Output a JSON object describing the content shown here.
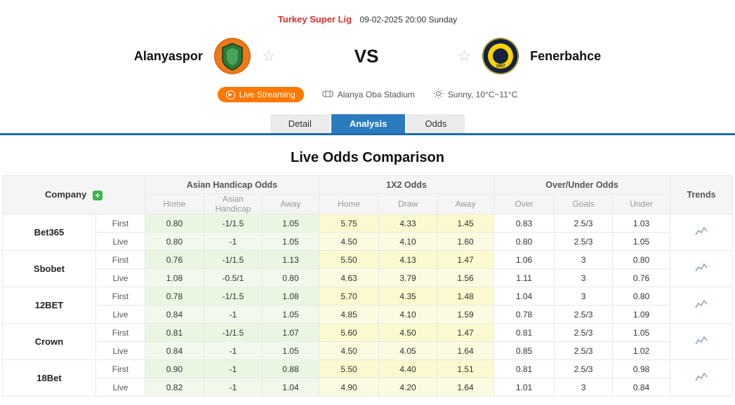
{
  "match_header": {
    "league": "Turkey Super Lig",
    "datetime": "09-02-2025 20:00 Sunday",
    "home_team": "Alanyaspor",
    "away_team": "Fenerbahce",
    "away_logo_year": "1907",
    "vs_label": "VS",
    "live_streaming_label": "Live Streaming",
    "stadium": "Alanya Oba Stadium",
    "weather": "Sunny, 10°C~11°C"
  },
  "icons": {
    "play": "▶",
    "star": "☆",
    "plus": "+"
  },
  "tabs": [
    {
      "label": "Detail",
      "active": false
    },
    {
      "label": "Analysis",
      "active": true
    },
    {
      "label": "Odds",
      "active": false
    }
  ],
  "section_title": "Live Odds Comparison",
  "odds_table": {
    "company_header": "Company",
    "trends_header": "Trends",
    "groups": [
      "Asian Handicap Odds",
      "1X2 Odds",
      "Over/Under Odds"
    ],
    "sub_headers": [
      "Home",
      "Asian Handicap",
      "Away",
      "Home",
      "Draw",
      "Away",
      "Over",
      "Goals",
      "Under"
    ],
    "row_labels": {
      "first": "First",
      "live": "Live"
    },
    "companies": [
      {
        "name": "Bet365",
        "first": [
          "0.80",
          "-1/1.5",
          "1.05",
          "5.75",
          "4.33",
          "1.45",
          "0.83",
          "2.5/3",
          "1.03"
        ],
        "live": [
          "0.80",
          "-1",
          "1.05",
          "4.50",
          "4.10",
          "1.60",
          "0.80",
          "2.5/3",
          "1.05"
        ]
      },
      {
        "name": "Sbobet",
        "first": [
          "0.76",
          "-1/1.5",
          "1.13",
          "5.50",
          "4.13",
          "1.47",
          "1.06",
          "3",
          "0.80"
        ],
        "live": [
          "1.08",
          "-0.5/1",
          "0.80",
          "4.63",
          "3.79",
          "1.56",
          "1.11",
          "3",
          "0.76"
        ]
      },
      {
        "name": "12BET",
        "first": [
          "0.78",
          "-1/1.5",
          "1.08",
          "5.70",
          "4.35",
          "1.48",
          "1.04",
          "3",
          "0.80"
        ],
        "live": [
          "0.84",
          "-1",
          "1.05",
          "4.85",
          "4.10",
          "1.59",
          "0.78",
          "2.5/3",
          "1.09"
        ]
      },
      {
        "name": "Crown",
        "first": [
          "0.81",
          "-1/1.5",
          "1.07",
          "5.60",
          "4.50",
          "1.47",
          "0.81",
          "2.5/3",
          "1.05"
        ],
        "live": [
          "0.84",
          "-1",
          "1.05",
          "4.50",
          "4.05",
          "1.64",
          "0.85",
          "2.5/3",
          "1.02"
        ]
      },
      {
        "name": "18Bet",
        "first": [
          "0.90",
          "-1",
          "0.88",
          "5.50",
          "4.40",
          "1.51",
          "0.81",
          "2.5/3",
          "0.98"
        ],
        "live": [
          "0.82",
          "-1",
          "1.04",
          "4.90",
          "4.20",
          "1.64",
          "1.01",
          "3",
          "0.84"
        ]
      }
    ]
  },
  "colors": {
    "accent_blue": "#2b7cbf",
    "league_red": "#d92f2f",
    "live_orange": "#ff7800",
    "asian_handicap_bg": "#eaf6e2",
    "x12_bg": "#fbf9cf",
    "plus_green": "#3cb44a"
  }
}
